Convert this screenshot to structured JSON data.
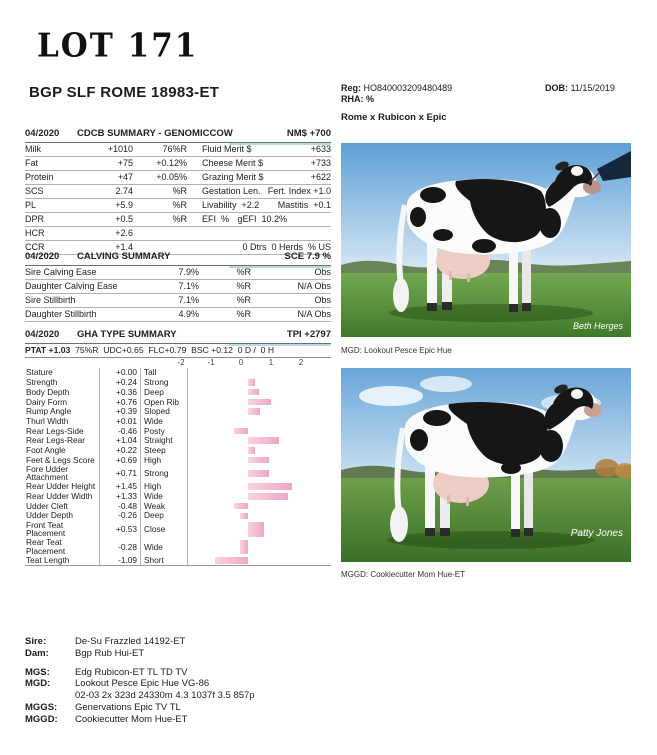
{
  "colors": {
    "accent_underline": "#b7dbdf",
    "bar_pink": "#efa6c5",
    "bar_pink_light": "#f8d4e2"
  },
  "header": {
    "lot": "LOT 171",
    "animal_name": "BGP SLF ROME 18983-ET",
    "reg_label": "Reg:",
    "reg_value": "HO840003209480489",
    "rha_line": "RHA: %",
    "dob_label": "DOB:",
    "dob_value": "11/15/2019",
    "cross": "Rome x Rubicon x Epic"
  },
  "cdcb": {
    "date": "04/2020",
    "title": "CDCB SUMMARY - GENOMICCOW",
    "nm": "NM$ +700",
    "rows": [
      {
        "c1": "Milk",
        "c2": "+1010",
        "c3": "76%R",
        "c4": "Fluid Merit $",
        "c5": "+633"
      },
      {
        "c1": "Fat",
        "c2": "+75",
        "c3": "+0.12%",
        "c4": "Cheese Merit $",
        "c5": "+733"
      },
      {
        "c1": "Protein",
        "c2": "+47",
        "c3": "+0.05%",
        "c4": "Grazing Merit $",
        "c5": "+622"
      },
      {
        "c1": "SCS",
        "c2": "2.74",
        "c3": "%R",
        "c4": "Gestation Len.",
        "c5": "Fert. Index +1.0"
      },
      {
        "c1": "PL",
        "c2": "+5.9",
        "c3": "%R",
        "c4": "Livability  +2.2",
        "c5": "Mastitis  +0.1"
      },
      {
        "c1": "DPR",
        "c2": "+0.5",
        "c3": "%R",
        "c4": "EFI  %",
        "c5": "gEFI  10.2%"
      },
      {
        "c1": "HCR",
        "c2": "+2.6",
        "c3": "",
        "c4": "",
        "c5": ""
      },
      {
        "c1": "CCR",
        "c2": "+1.4",
        "c3": "",
        "c4": "",
        "c5": "0 Dtrs  0 Herds  % US"
      }
    ]
  },
  "calving": {
    "date": "04/2020",
    "title": "CALVING SUMMARY",
    "sce": "SCE 7.9 %",
    "rows": [
      {
        "label": "Sire Calving Ease",
        "value": "7.9%",
        "rel": "%R",
        "obs": "Obs"
      },
      {
        "label": "Daughter Calving Ease",
        "value": "7.1%",
        "rel": "%R",
        "obs": "N/A Obs"
      },
      {
        "label": "Sire Stillbirth",
        "value": "7.1%",
        "rel": "%R",
        "obs": "Obs"
      },
      {
        "label": "Daughter Stillbirth",
        "value": "4.9%",
        "rel": "%R",
        "obs": "N/A Obs"
      }
    ]
  },
  "type_summary": {
    "date": "04/2020",
    "title": "GHA TYPE SUMMARY",
    "tpi": "TPI +2797",
    "ptat_bold": "PTAT +1.03",
    "ptat_rest": "  75%R  UDC+0.65  FLC+0.79  BSC +0.12  0 D /  0 H",
    "scale": [
      "-2",
      "-1",
      "0",
      "1",
      "2"
    ]
  },
  "chart_data": {
    "type": "bar",
    "orientation": "horizontal",
    "xlim": [
      -2,
      2
    ],
    "title": "GHA TYPE SUMMARY linear traits",
    "categories": [
      "Stature",
      "Strength",
      "Body Depth",
      "Dairy Form",
      "Rump Angle",
      "Thurl Width",
      "Rear Legs-Side",
      "Rear Legs-Rear",
      "Foot Angle",
      "Feet & Legs Score",
      "Fore Udder Attachment",
      "Rear Udder Height",
      "Rear Udder Width",
      "Udder Cleft",
      "Udder Depth",
      "Front Teat Placement",
      "Rear Teat Placement",
      "Teat Length"
    ],
    "values": [
      0.0,
      0.24,
      0.36,
      0.76,
      0.39,
      0.01,
      -0.46,
      1.04,
      0.22,
      0.69,
      0.71,
      1.45,
      1.33,
      -0.48,
      -0.26,
      0.53,
      -0.28,
      -1.09
    ],
    "traits": [
      {
        "label": "Stature",
        "value": "+0.00",
        "desc": "Tall"
      },
      {
        "label": "Strength",
        "value": "+0.24",
        "desc": "Strong"
      },
      {
        "label": "Body Depth",
        "value": "+0.36",
        "desc": "Deep"
      },
      {
        "label": "Dairy Form",
        "value": "+0.76",
        "desc": "Open Rib"
      },
      {
        "label": "Rump Angle",
        "value": "+0.39",
        "desc": "Sloped"
      },
      {
        "label": "Thurl Width",
        "value": "+0.01",
        "desc": "Wide"
      },
      {
        "label": "Rear Legs-Side",
        "value": "-0.46",
        "desc": "Posty"
      },
      {
        "label": "Rear Legs-Rear",
        "value": "+1.04",
        "desc": "Straight"
      },
      {
        "label": "Foot Angle",
        "value": "+0.22",
        "desc": "Steep"
      },
      {
        "label": "Feet & Legs Score",
        "value": "+0.69",
        "desc": "High"
      },
      {
        "label": "Fore Udder Attachment",
        "value": "+0.71",
        "desc": "Strong"
      },
      {
        "label": "Rear Udder Height",
        "value": "+1.45",
        "desc": "High"
      },
      {
        "label": "Rear Udder Width",
        "value": "+1.33",
        "desc": "Wide"
      },
      {
        "label": "Udder Cleft",
        "value": "-0.48",
        "desc": "Weak"
      },
      {
        "label": "Udder Depth",
        "value": "-0.26",
        "desc": "Deep"
      },
      {
        "label": "Front Teat Placement",
        "value": "+0.53",
        "desc": "Close"
      },
      {
        "label": "Rear Teat Placement",
        "value": "-0.28",
        "desc": "Wide"
      },
      {
        "label": "Teat Length",
        "value": "-1.09",
        "desc": "Short"
      }
    ]
  },
  "photos": {
    "photo1": {
      "caption": "MGD: Lookout Pesce Epic Hue",
      "signature": "Beth Herges"
    },
    "photo2": {
      "caption": "MGGD: Cookiecutter Mom Hue-ET",
      "signature": "Patty Jones"
    }
  },
  "pedigree": {
    "rows": [
      {
        "label": "Sire:",
        "value": "De-Su Frazzled 14192-ET"
      },
      {
        "label": "Dam:",
        "value": "Bgp Rub Hui-ET"
      },
      {
        "label": "MGS:",
        "value": "Edg Rubicon-ET TL TD TV"
      },
      {
        "label": "MGD:",
        "value": "Lookout Pesce Epic Hue VG-86"
      },
      {
        "label": "",
        "value": "02-03 2x 323d 24330m 4.3 1037f 3.5 857p"
      },
      {
        "label": "MGGS:",
        "value": "Genervations Epic TV TL"
      },
      {
        "label": "MGGD:",
        "value": "Cookiecutter Mom Hue-ET"
      }
    ]
  }
}
